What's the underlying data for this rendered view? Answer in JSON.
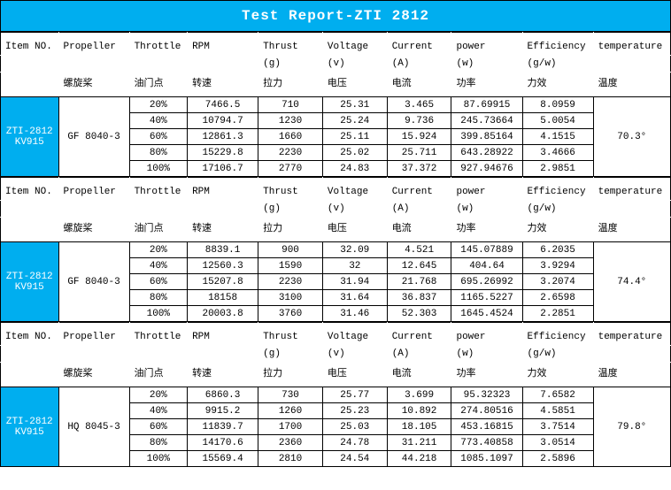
{
  "title": "Test Report-ZTI 2812",
  "colors": {
    "accent": "#00aeef",
    "border": "#000000",
    "bg": "#ffffff",
    "accentText": "#ffffff"
  },
  "headers": {
    "en": [
      "Item NO.",
      "Propeller",
      "Throttle",
      "RPM",
      "Thrust",
      "Voltage",
      "Current",
      "power",
      "Efficiency",
      "temperature"
    ],
    "unit": [
      "",
      "",
      "",
      "",
      "(g)",
      "(v)",
      "(A)",
      "(w)",
      "(g/w)",
      ""
    ],
    "zh": [
      "",
      "螺旋桨",
      "油门点",
      "转速",
      "拉力",
      "电压",
      "电流",
      "功率",
      "力效",
      "温度"
    ]
  },
  "sections": [
    {
      "item": "ZTI-2812\nKV915",
      "propeller": "GF 8040-3",
      "temperature": "70.3°",
      "rows": [
        {
          "throttle": "20%",
          "rpm": "7466.5",
          "thrust": "710",
          "voltage": "25.31",
          "current": "3.465",
          "power": "87.69915",
          "eff": "8.0959"
        },
        {
          "throttle": "40%",
          "rpm": "10794.7",
          "thrust": "1230",
          "voltage": "25.24",
          "current": "9.736",
          "power": "245.73664",
          "eff": "5.0054"
        },
        {
          "throttle": "60%",
          "rpm": "12861.3",
          "thrust": "1660",
          "voltage": "25.11",
          "current": "15.924",
          "power": "399.85164",
          "eff": "4.1515"
        },
        {
          "throttle": "80%",
          "rpm": "15229.8",
          "thrust": "2230",
          "voltage": "25.02",
          "current": "25.711",
          "power": "643.28922",
          "eff": "3.4666"
        },
        {
          "throttle": "100%",
          "rpm": "17106.7",
          "thrust": "2770",
          "voltage": "24.83",
          "current": "37.372",
          "power": "927.94676",
          "eff": "2.9851"
        }
      ]
    },
    {
      "item": "ZTI-2812\nKV915",
      "propeller": "GF 8040-3",
      "temperature": "74.4°",
      "rows": [
        {
          "throttle": "20%",
          "rpm": "8839.1",
          "thrust": "900",
          "voltage": "32.09",
          "current": "4.521",
          "power": "145.07889",
          "eff": "6.2035"
        },
        {
          "throttle": "40%",
          "rpm": "12560.3",
          "thrust": "1590",
          "voltage": "32",
          "current": "12.645",
          "power": "404.64",
          "eff": "3.9294"
        },
        {
          "throttle": "60%",
          "rpm": "15207.8",
          "thrust": "2230",
          "voltage": "31.94",
          "current": "21.768",
          "power": "695.26992",
          "eff": "3.2074"
        },
        {
          "throttle": "80%",
          "rpm": "18158",
          "thrust": "3100",
          "voltage": "31.64",
          "current": "36.837",
          "power": "1165.5227",
          "eff": "2.6598"
        },
        {
          "throttle": "100%",
          "rpm": "20003.8",
          "thrust": "3760",
          "voltage": "31.46",
          "current": "52.303",
          "power": "1645.4524",
          "eff": "2.2851"
        }
      ]
    },
    {
      "item": "ZTI-2812\nKV915",
      "propeller": "HQ 8045-3",
      "temperature": "79.8°",
      "rows": [
        {
          "throttle": "20%",
          "rpm": "6860.3",
          "thrust": "730",
          "voltage": "25.77",
          "current": "3.699",
          "power": "95.32323",
          "eff": "7.6582"
        },
        {
          "throttle": "40%",
          "rpm": "9915.2",
          "thrust": "1260",
          "voltage": "25.23",
          "current": "10.892",
          "power": "274.80516",
          "eff": "4.5851"
        },
        {
          "throttle": "60%",
          "rpm": "11839.7",
          "thrust": "1700",
          "voltage": "25.03",
          "current": "18.105",
          "power": "453.16815",
          "eff": "3.7514"
        },
        {
          "throttle": "80%",
          "rpm": "14170.6",
          "thrust": "2360",
          "voltage": "24.78",
          "current": "31.211",
          "power": "773.40858",
          "eff": "3.0514"
        },
        {
          "throttle": "100%",
          "rpm": "15569.4",
          "thrust": "2810",
          "voltage": "24.54",
          "current": "44.218",
          "power": "1085.1097",
          "eff": "2.5896"
        }
      ]
    }
  ]
}
